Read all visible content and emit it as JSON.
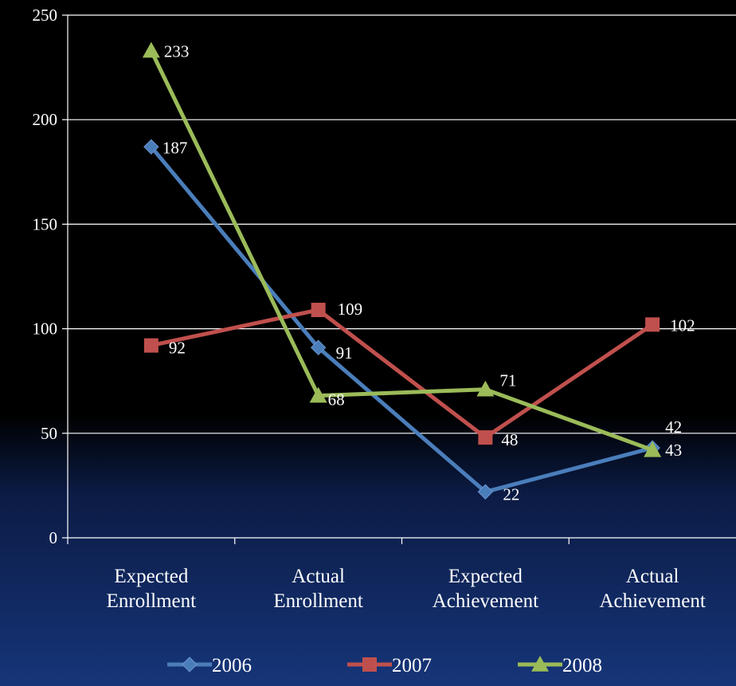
{
  "chart_data": {
    "type": "line",
    "categories": [
      "Expected Enrollment",
      "Actual Enrollment",
      "Expected Achievement",
      "Actual Achievement"
    ],
    "series": [
      {
        "name": "2006",
        "values": [
          187,
          91,
          22,
          43
        ],
        "color": "#4a7ebb",
        "marker": "diamond"
      },
      {
        "name": "2007",
        "values": [
          92,
          109,
          48,
          102
        ],
        "color": "#c0504d",
        "marker": "square"
      },
      {
        "name": "2008",
        "values": [
          233,
          68,
          71,
          42
        ],
        "color": "#9bbb59",
        "marker": "triangle"
      }
    ],
    "ylim": [
      0,
      250
    ],
    "yticks": [
      0,
      50,
      100,
      150,
      200,
      250
    ],
    "grid": true,
    "legend": "bottom"
  }
}
